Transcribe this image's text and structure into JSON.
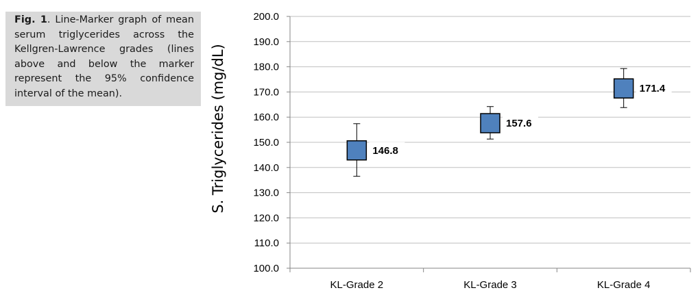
{
  "caption": {
    "label": "Fig. 1",
    "text": ". Line-Marker graph of mean serum triglycerides across the Kellgren-Lawrence grades (lines above and below the marker represent the 95% confidence interval of the mean)."
  },
  "chart_data": {
    "type": "line-marker",
    "ylabel": "S. Triglycerides (mg/dL)",
    "xlabel": "",
    "ylim": [
      100,
      200
    ],
    "yticks": [
      "100.0",
      "110.0",
      "120.0",
      "130.0",
      "140.0",
      "150.0",
      "160.0",
      "170.0",
      "180.0",
      "190.0",
      "200.0"
    ],
    "grid": true,
    "categories": [
      "KL-Grade 2",
      "KL-Grade 3",
      "KL-Grade 4"
    ],
    "series": [
      {
        "values": [
          146.8,
          157.6,
          171.4
        ],
        "value_labels": [
          "146.8",
          "157.6",
          "171.4"
        ],
        "ci_upper": [
          157.4,
          164.2,
          179.3
        ],
        "ci_lower": [
          136.5,
          151.3,
          163.8
        ]
      }
    ],
    "colors": {
      "marker_fill": "#4f81bd",
      "marker_stroke": "#000000",
      "grid": "#bfbfbf",
      "axis": "#868686"
    }
  }
}
